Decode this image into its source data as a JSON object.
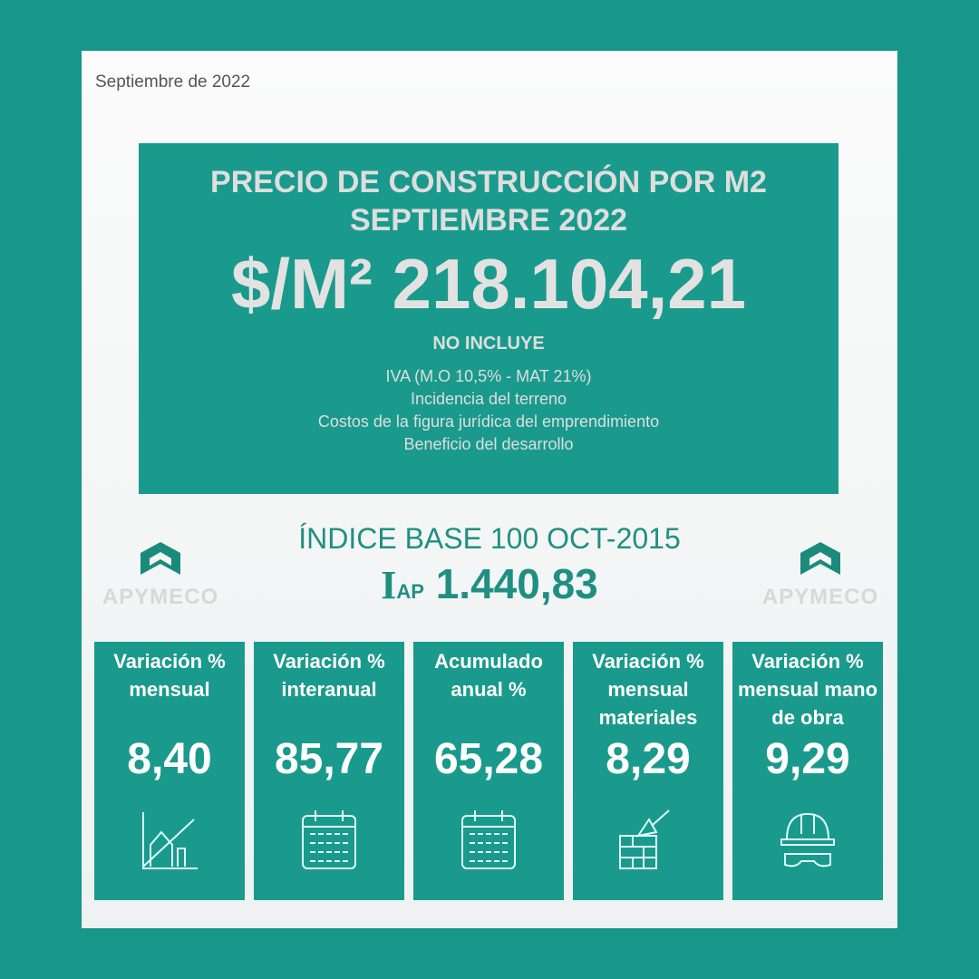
{
  "date": "Septiembre de 2022",
  "hero": {
    "title1": "PRECIO DE CONSTRUCCIÓN POR M2",
    "title2": "SEPTIEMBRE 2022",
    "price": "$/M² 218.104,21",
    "no_incluye": "NO INCLUYE",
    "exclusions": [
      "IVA (M.O 10,5% - MAT 21%)",
      "Incidencia del terreno",
      "Costos de la figura jurídica del emprendimiento",
      "Beneficio del desarrollo"
    ]
  },
  "index": {
    "heading": "ÍNDICE BASE 100 OCT-2015",
    "symbol": "I",
    "symbol_sub": "AP",
    "value": "1.440,83"
  },
  "logo": {
    "name": "APYMECO"
  },
  "tiles": [
    {
      "label": "Variación % mensual",
      "value": "8,40",
      "icon": "house-growth-icon"
    },
    {
      "label": "Variación % interanual",
      "value": "85,77",
      "icon": "calendar-icon"
    },
    {
      "label": "Acumulado anual %",
      "value": "65,28",
      "icon": "calendar-icon"
    },
    {
      "label": "Variación % mensual materiales",
      "value": "8,29",
      "icon": "bricks-trowel-icon"
    },
    {
      "label": "Variación % mensual mano de obra",
      "value": "9,29",
      "icon": "helmet-goggles-icon"
    }
  ],
  "colors": {
    "teal": "#1a9a8c",
    "background": "#17968a"
  }
}
